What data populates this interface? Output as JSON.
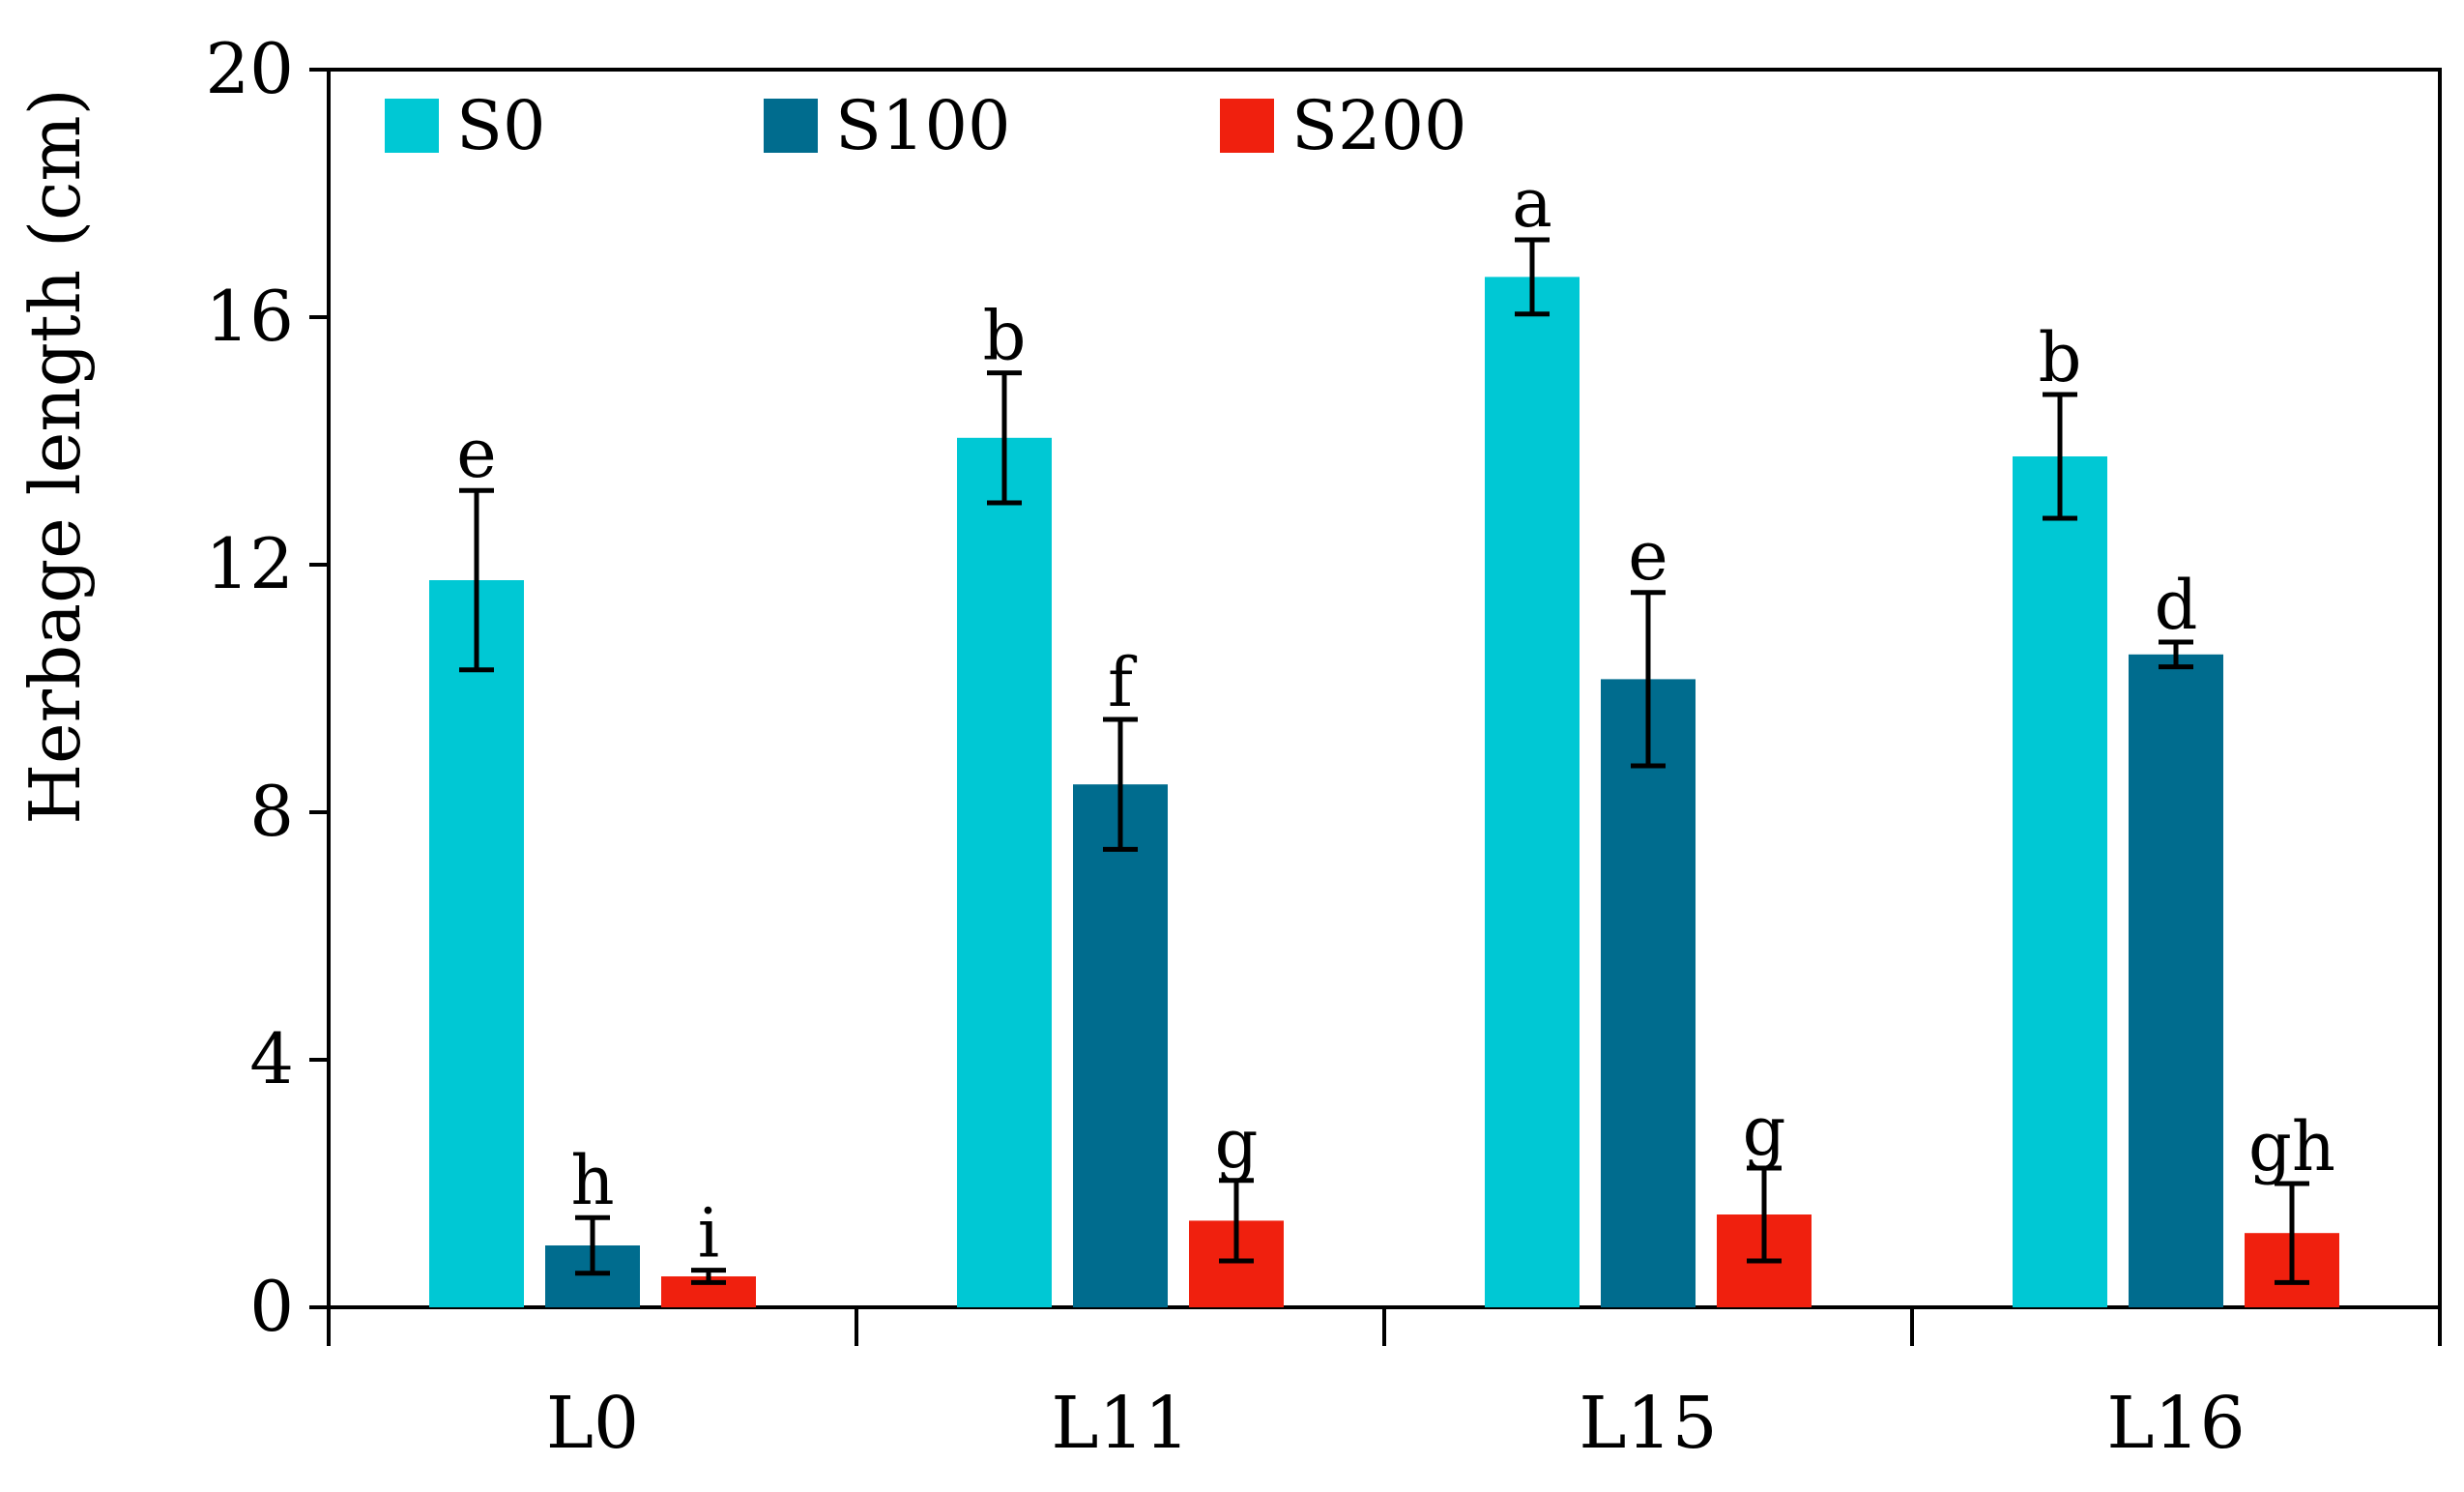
{
  "chart_data": {
    "type": "bar",
    "title": "",
    "xlabel": "",
    "ylabel": "Herbage length (cm)",
    "ylim": [
      0,
      20
    ],
    "yticks": [
      0,
      4,
      8,
      12,
      16,
      20
    ],
    "grid": false,
    "legend_position": "top-left",
    "categories": [
      "L0",
      "L11",
      "L15",
      "L16"
    ],
    "series": [
      {
        "name": "S0",
        "color": "#00C8D4",
        "values": [
          11.75,
          14.05,
          16.65,
          13.75
        ],
        "errors": [
          1.45,
          1.05,
          0.6,
          1.0
        ],
        "letters": [
          "e",
          "b",
          "a",
          "b"
        ]
      },
      {
        "name": "S100",
        "color": "#006C8E",
        "values": [
          1.0,
          8.45,
          10.15,
          10.55
        ],
        "errors": [
          0.45,
          1.05,
          1.4,
          0.2
        ],
        "letters": [
          "h",
          "f",
          "e",
          "d"
        ]
      },
      {
        "name": "S200",
        "color": "#F0200E",
        "values": [
          0.5,
          1.4,
          1.5,
          1.2
        ],
        "errors": [
          0.1,
          0.65,
          0.75,
          0.8
        ],
        "letters": [
          "i",
          "g",
          "g",
          "gh"
        ]
      }
    ]
  }
}
